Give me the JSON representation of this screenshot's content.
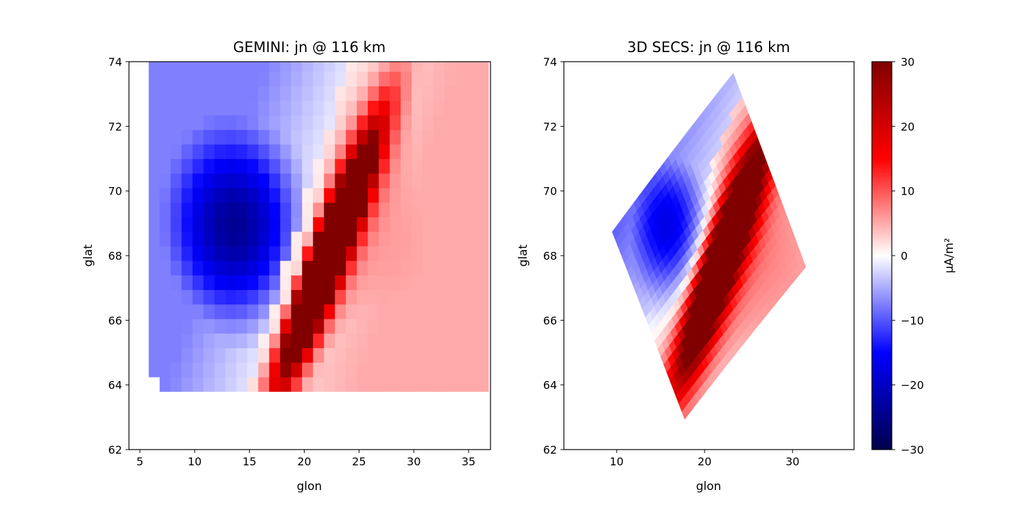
{
  "chart_data": [
    {
      "type": "heatmap",
      "title": "GEMINI: jn @ 116 km",
      "xlabel": "glon",
      "ylabel": "glat",
      "xlim": [
        4,
        37
      ],
      "ylim": [
        62,
        74
      ],
      "xticks": [
        5,
        10,
        15,
        20,
        25,
        30,
        35
      ],
      "yticks": [
        62,
        64,
        66,
        68,
        70,
        72,
        74
      ],
      "grid": false,
      "domain": {
        "lon_range": [
          5.8,
          37.0
        ],
        "lat_range": [
          63.8,
          74.0
        ]
      },
      "colormap": "seismic",
      "color_limits": [
        -30,
        30
      ],
      "features": {
        "negative_blob": {
          "lon": 14.0,
          "lat": 68.8,
          "peak": -20
        },
        "positive_core": {
          "lon": 22.2,
          "lat": 68.0,
          "peak": 30
        },
        "positive_halo_peak": 6,
        "divider": "diagonal from (15, 64) to (24, 74)"
      }
    },
    {
      "type": "heatmap",
      "title": "3D SECS: jn @ 116 km",
      "xlabel": "glon",
      "ylabel": "glat",
      "xlim": [
        4,
        37
      ],
      "ylim": [
        62,
        74
      ],
      "xticks": [
        10,
        20,
        30
      ],
      "yticks": [
        62,
        64,
        66,
        68,
        70,
        72,
        74
      ],
      "grid": false,
      "domain": "curved grid rotated about 35 degrees, centred near (20.5, 68.3)",
      "colormap": "seismic",
      "color_limits": [
        -30,
        30
      ],
      "features": {
        "negative_blob": {
          "lon": 16.0,
          "lat": 68.9,
          "peak": -20
        },
        "positive_core": {
          "lon": 22.0,
          "lat": 67.9,
          "peak": 30
        },
        "positive_halo_peak": 7
      }
    }
  ],
  "colorbar": {
    "label": "μA/m²",
    "ticks": [
      -30,
      -20,
      -10,
      0,
      10,
      20,
      30
    ],
    "range": [
      -30,
      30
    ]
  }
}
